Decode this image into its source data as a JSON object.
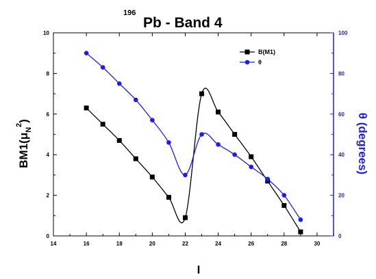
{
  "chart_data": {
    "type": "line",
    "title_superscript": "196",
    "title_main": "Pb - Band 4",
    "xlabel": "I",
    "ylabel_left_base": "BM1(μ",
    "ylabel_left_sub": "N",
    "ylabel_left_sup": "2",
    "ylabel_left_close": ")",
    "ylabel_right": "θ (degrees)",
    "xlim": [
      14,
      31
    ],
    "ylim_left": [
      0,
      10
    ],
    "ylim_right": [
      0,
      100
    ],
    "x_ticks": [
      "14",
      "16",
      "18",
      "20",
      "22",
      "24",
      "26",
      "28",
      "30"
    ],
    "y_left_ticks": [
      "0",
      "2",
      "4",
      "6",
      "8",
      "10"
    ],
    "y_right_ticks": [
      "0",
      "20",
      "40",
      "60",
      "80",
      "100"
    ],
    "legend_position": "top-right",
    "grid": false,
    "series": [
      {
        "name": "B(M1)",
        "axis": "left",
        "color": "#000000",
        "marker": "square",
        "x": [
          16,
          17,
          18,
          19,
          20,
          21,
          22,
          23,
          24,
          25,
          26,
          27,
          28,
          29
        ],
        "y": [
          6.3,
          5.5,
          4.7,
          3.8,
          2.9,
          1.9,
          0.9,
          7.0,
          6.1,
          5.0,
          3.9,
          2.7,
          1.5,
          0.2
        ]
      },
      {
        "name": "θ",
        "axis": "right",
        "color": "#1a1aff",
        "marker": "circle",
        "x": [
          16,
          17,
          18,
          19,
          20,
          21,
          22,
          23,
          24,
          25,
          26,
          27,
          28,
          29
        ],
        "y": [
          90,
          83,
          75,
          67,
          57,
          46,
          30,
          50,
          45,
          40,
          34,
          28,
          20,
          8
        ]
      }
    ]
  }
}
